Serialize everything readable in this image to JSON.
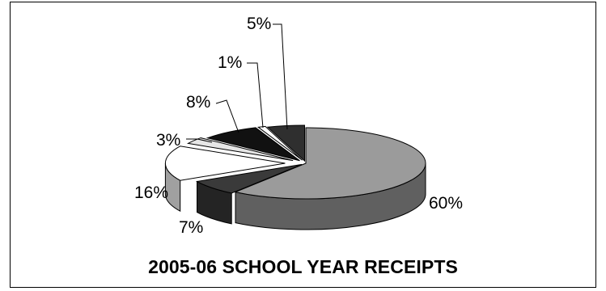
{
  "chart_data": {
    "type": "pie",
    "title": "2005-06 SCHOOL YEAR RECEIPTS",
    "slices": [
      {
        "value": 60,
        "label": "60%",
        "color": "#9b9b9b"
      },
      {
        "value": 7,
        "label": "7%",
        "color": "#3a3a3a"
      },
      {
        "value": 16,
        "label": "16%",
        "color": "#ffffff"
      },
      {
        "value": 3,
        "label": "3%",
        "color": "#e6e6e6"
      },
      {
        "value": 8,
        "label": "8%",
        "color": "#111111"
      },
      {
        "value": 1,
        "label": "1%",
        "color": "#ffffff"
      },
      {
        "value": 5,
        "label": "5%",
        "color": "#2f2f2f"
      }
    ],
    "style": "3d-exploded-pie",
    "legend": "none"
  }
}
